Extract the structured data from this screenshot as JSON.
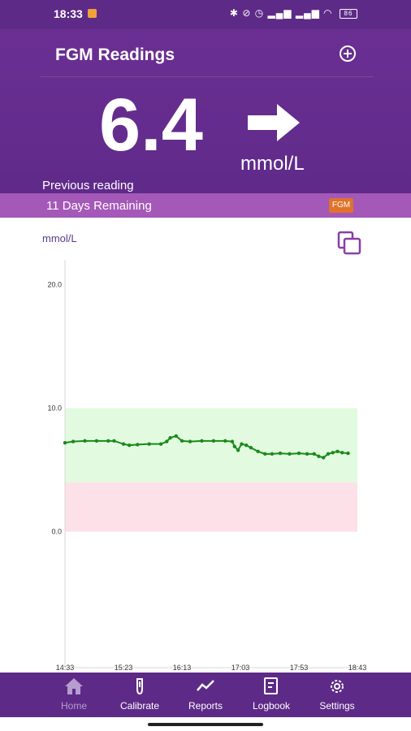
{
  "status_bar": {
    "time": "18:33",
    "battery": "86"
  },
  "header": {
    "title": "FGM Readings",
    "reading_value": "6.4",
    "reading_unit": "mmol/L",
    "previous_label": "Previous reading"
  },
  "sensor": {
    "remaining": "11 Days Remaining",
    "badge": "FGM"
  },
  "chart_panel": {
    "unit_label": "mmol/L"
  },
  "colors": {
    "header": "#6b2f93",
    "band": "#a458b8",
    "nav": "#5e2a87",
    "line": "#1a8a1a",
    "target_range": "#e2fbe0",
    "low_range": "#fde1e8"
  },
  "chart_data": {
    "type": "line",
    "ylim": [
      -11,
      22
    ],
    "y_ticks": [
      "20.0",
      "10.0",
      "0.0"
    ],
    "x_ticks": [
      "14:33",
      "15:23",
      "16:13",
      "17:03",
      "17:53",
      "18:43"
    ],
    "target_range": [
      4,
      10
    ],
    "low_range": [
      0,
      4
    ],
    "series": [
      {
        "x": [
          "14:33",
          "14:40",
          "14:50",
          "15:00",
          "15:10",
          "15:15",
          "15:23",
          "15:28",
          "15:35",
          "15:45",
          "15:55",
          "16:00",
          "16:03",
          "16:08",
          "16:13",
          "16:20",
          "16:30",
          "16:40",
          "16:50",
          "16:56",
          "16:58",
          "17:01",
          "17:04",
          "17:08",
          "17:12",
          "17:18",
          "17:24",
          "17:30",
          "17:37",
          "17:45",
          "17:53",
          "18:00",
          "18:06",
          "18:10",
          "18:14",
          "18:18",
          "18:22",
          "18:26",
          "18:30",
          "18:35"
        ],
        "values": [
          7.2,
          7.3,
          7.35,
          7.35,
          7.35,
          7.35,
          7.1,
          7.0,
          7.05,
          7.1,
          7.1,
          7.3,
          7.6,
          7.75,
          7.35,
          7.3,
          7.35,
          7.35,
          7.35,
          7.3,
          6.9,
          6.6,
          7.1,
          7.0,
          6.8,
          6.5,
          6.3,
          6.3,
          6.35,
          6.3,
          6.35,
          6.3,
          6.3,
          6.1,
          6.0,
          6.3,
          6.4,
          6.5,
          6.4,
          6.35
        ]
      }
    ]
  },
  "nav": {
    "items": [
      {
        "label": "Home",
        "icon": "home-icon"
      },
      {
        "label": "Calibrate",
        "icon": "calibrate-icon"
      },
      {
        "label": "Reports",
        "icon": "reports-icon"
      },
      {
        "label": "Logbook",
        "icon": "logbook-icon"
      },
      {
        "label": "Settings",
        "icon": "settings-icon"
      }
    ]
  }
}
